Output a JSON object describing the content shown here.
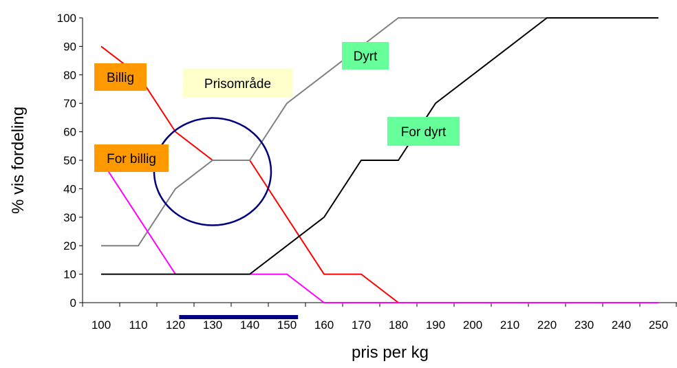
{
  "chart_data": {
    "type": "line",
    "xlabel": "pris per kg",
    "ylabel": "% vis fordeling",
    "x": [
      100,
      110,
      120,
      130,
      140,
      150,
      160,
      170,
      180,
      190,
      200,
      210,
      220,
      230,
      240,
      250
    ],
    "xlim": [
      95,
      255
    ],
    "ylim": [
      0,
      100
    ],
    "y_ticks": [
      0,
      10,
      20,
      30,
      40,
      50,
      60,
      70,
      80,
      90,
      100
    ],
    "grid": false,
    "series": [
      {
        "color": "#ff0000",
        "values": [
          90,
          80,
          60,
          50,
          50,
          30,
          10,
          10,
          0,
          0,
          0,
          0,
          0,
          0,
          0,
          0
        ]
      },
      {
        "color": "#808080",
        "values": [
          20,
          20,
          40,
          50,
          50,
          70,
          80,
          90,
          100,
          100,
          100,
          100,
          100,
          100,
          100,
          100
        ]
      },
      {
        "color": "#ff00ff",
        "values": [
          50,
          30,
          10,
          10,
          10,
          10,
          0,
          0,
          0,
          0,
          0,
          0,
          0,
          0,
          0,
          0
        ]
      },
      {
        "color": "#000000",
        "values": [
          10,
          10,
          10,
          10,
          10,
          20,
          30,
          50,
          50,
          70,
          80,
          90,
          100,
          100,
          100,
          100
        ]
      }
    ],
    "annotations": [
      {
        "text": "Billig",
        "bg": "#ff9900"
      },
      {
        "text": "Prisområde",
        "bg": "#ffffcc"
      },
      {
        "text": "Dyrt",
        "bg": "#66ff99"
      },
      {
        "text": "For dyrt",
        "bg": "#66ff99"
      },
      {
        "text": "For billig",
        "bg": "#ff9900"
      }
    ],
    "highlight": {
      "shape": "ellipse",
      "color": "#000080",
      "x_range": [
        121,
        153
      ]
    }
  }
}
